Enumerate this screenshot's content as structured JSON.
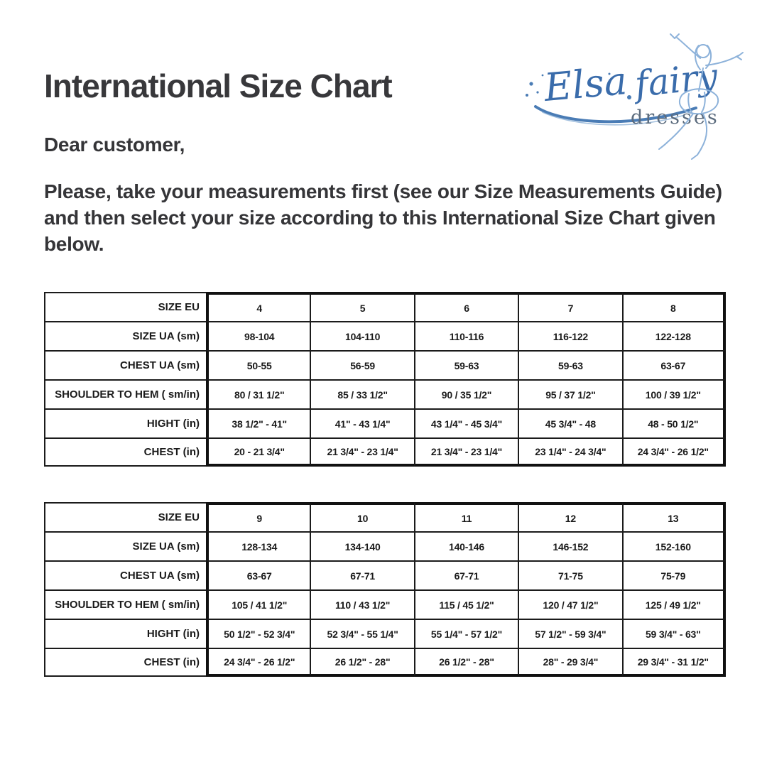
{
  "page": {
    "title": "International Size Chart",
    "greeting": "Dear customer,",
    "paragraph": "Please, take your measurements first (see our Size Measurements Guide) and then select your size according to this International Size Chart given below."
  },
  "logo": {
    "brand_script": "Elsa fairy",
    "word1": "Elsa",
    "word2": "fairy",
    "subtext": "dresses",
    "script_blue": "#3a6cab",
    "sketch_blue": "#8db2da",
    "subtext_gray": "#5c6c7e"
  },
  "tables": [
    {
      "rows": [
        {
          "label": "SIZE EU",
          "values": [
            "4",
            "5",
            "6",
            "7",
            "8"
          ]
        },
        {
          "label": "SIZE UA (sm)",
          "values": [
            "98-104",
            "104-110",
            "110-116",
            "116-122",
            "122-128"
          ]
        },
        {
          "label": "CHEST UA (sm)",
          "values": [
            "50-55",
            "56-59",
            "59-63",
            "59-63",
            "63-67"
          ]
        },
        {
          "label": "SHOULDER TO HEM ( sm/in)",
          "values": [
            "80 / 31 1/2\"",
            "85 / 33 1/2\"",
            "90 / 35 1/2\"",
            "95 / 37 1/2\"",
            "100 / 39 1/2\""
          ]
        },
        {
          "label": "HIGHT (in)",
          "values": [
            "38 1/2\" - 41\"",
            "41\" - 43 1/4\"",
            "43 1/4\" - 45 3/4\"",
            "45 3/4\" - 48",
            "48 - 50 1/2\""
          ]
        },
        {
          "label": "CHEST (in)",
          "values": [
            "20 - 21 3/4\"",
            "21 3/4\" - 23 1/4\"",
            "21 3/4\" - 23 1/4\"",
            "23 1/4\" - 24 3/4\"",
            "24 3/4\" - 26 1/2\""
          ]
        }
      ]
    },
    {
      "rows": [
        {
          "label": "SIZE EU",
          "values": [
            "9",
            "10",
            "11",
            "12",
            "13"
          ]
        },
        {
          "label": "SIZE UA (sm)",
          "values": [
            "128-134",
            "134-140",
            "140-146",
            "146-152",
            "152-160"
          ]
        },
        {
          "label": "CHEST UA (sm)",
          "values": [
            "63-67",
            "67-71",
            "67-71",
            "71-75",
            "75-79"
          ]
        },
        {
          "label": "SHOULDER TO HEM ( sm/in)",
          "values": [
            "105 / 41 1/2\"",
            "110 / 43 1/2\"",
            "115 / 45 1/2\"",
            "120 / 47 1/2\"",
            "125 / 49 1/2\""
          ]
        },
        {
          "label": "HIGHT (in)",
          "values": [
            "50 1/2\" - 52 3/4\"",
            "52 3/4\" - 55 1/4\"",
            "55 1/4\" - 57 1/2\"",
            "57 1/2\" - 59 3/4\"",
            "59 3/4\" - 63\""
          ]
        },
        {
          "label": "CHEST (in)",
          "values": [
            "24 3/4\" - 26 1/2\"",
            "26 1/2\" - 28\"",
            "26 1/2\" - 28\"",
            "28\" - 29 3/4\"",
            "29 3/4\" - 31 1/2\""
          ]
        }
      ]
    }
  ]
}
